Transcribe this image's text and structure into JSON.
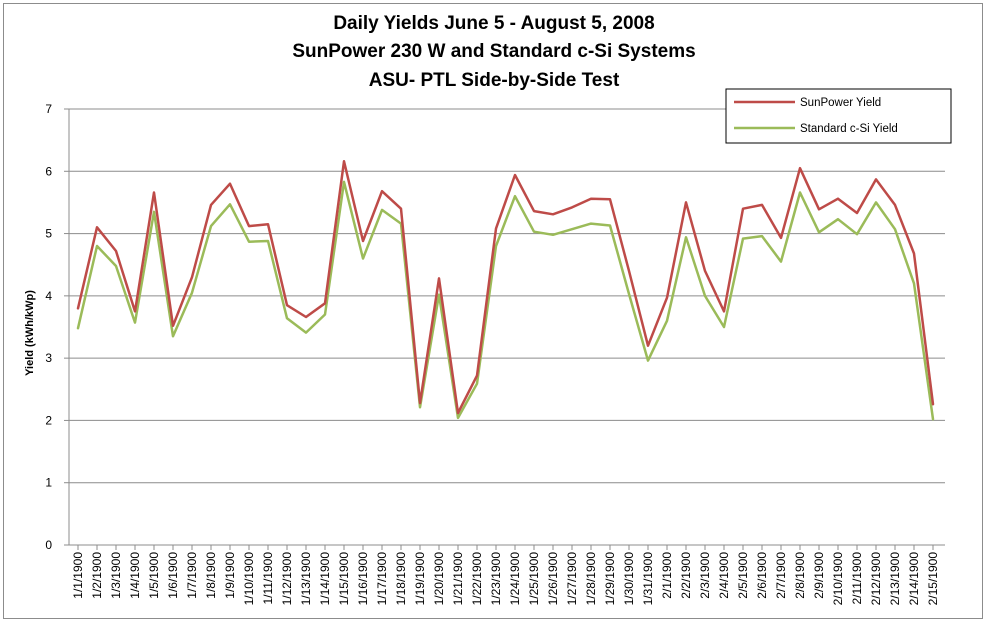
{
  "chart_data": {
    "type": "line",
    "title_lines": [
      "Daily Yields June 5 - August 5, 2008",
      "SunPower 230 W and Standard c-Si Systems",
      "ASU- PTL Side-by-Side Test"
    ],
    "xlabel": "",
    "ylabel": "Yield (kWh/kWp)",
    "ylim": [
      0,
      7
    ],
    "yticks": [
      "0",
      "1",
      "2",
      "3",
      "4",
      "5",
      "6",
      "7"
    ],
    "grid": "horizontal",
    "legend_position": "top-right",
    "x": [
      "1/1/1900",
      "1/2/1900",
      "1/3/1900",
      "1/4/1900",
      "1/5/1900",
      "1/6/1900",
      "1/7/1900",
      "1/8/1900",
      "1/9/1900",
      "1/10/1900",
      "1/11/1900",
      "1/12/1900",
      "1/13/1900",
      "1/14/1900",
      "1/15/1900",
      "1/16/1900",
      "1/17/1900",
      "1/18/1900",
      "1/19/1900",
      "1/20/1900",
      "1/21/1900",
      "1/22/1900",
      "1/23/1900",
      "1/24/1900",
      "1/25/1900",
      "1/26/1900",
      "1/27/1900",
      "1/28/1900",
      "1/29/1900",
      "1/30/1900",
      "1/31/1900",
      "2/1/1900",
      "2/2/1900",
      "2/3/1900",
      "2/4/1900",
      "2/5/1900",
      "2/6/1900",
      "2/7/1900",
      "2/8/1900",
      "2/9/1900",
      "2/10/1900",
      "2/11/1900",
      "2/12/1900",
      "2/13/1900",
      "2/14/1900",
      "2/15/1900"
    ],
    "series": [
      {
        "name": "SunPower Yield",
        "color": "#be4b48",
        "values": [
          3.8,
          5.1,
          4.72,
          3.75,
          5.66,
          3.52,
          4.3,
          5.46,
          5.8,
          5.12,
          5.15,
          3.85,
          3.66,
          3.88,
          6.16,
          4.88,
          5.68,
          5.4,
          2.28,
          4.28,
          2.12,
          2.72,
          5.08,
          5.94,
          5.36,
          5.31,
          5.42,
          5.56,
          5.55,
          4.4,
          3.2,
          3.97,
          5.5,
          4.4,
          3.75,
          5.4,
          5.46,
          4.93,
          6.05,
          5.39,
          5.56,
          5.33,
          5.87,
          5.46,
          4.68,
          2.26
        ]
      },
      {
        "name": "Standard c-Si Yield",
        "color": "#9bbb59",
        "values": [
          3.48,
          4.8,
          4.48,
          3.57,
          5.35,
          3.35,
          4.05,
          5.12,
          5.47,
          4.87,
          4.88,
          3.64,
          3.41,
          3.7,
          5.83,
          4.6,
          5.38,
          5.16,
          2.21,
          4.02,
          2.04,
          2.59,
          4.8,
          5.6,
          5.03,
          4.98,
          5.07,
          5.16,
          5.13,
          4.03,
          2.96,
          3.6,
          4.94,
          4.0,
          3.5,
          4.92,
          4.96,
          4.55,
          5.66,
          5.02,
          5.23,
          4.99,
          5.5,
          5.07,
          4.2,
          2.02
        ]
      }
    ]
  }
}
